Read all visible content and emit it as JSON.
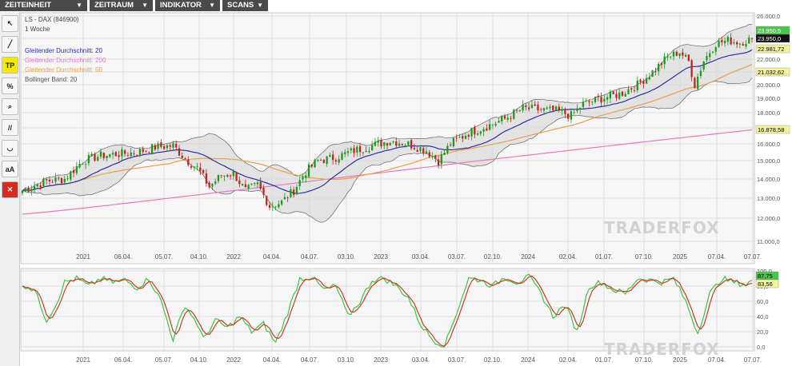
{
  "menu": {
    "items": [
      {
        "label": "ZEITEINHEIT",
        "arrow": "▼"
      },
      {
        "label": "ZEITRAUM",
        "arrow": "▼"
      },
      {
        "label": "INDIKATOR",
        "arrow": "▼"
      },
      {
        "label": "SCANS",
        "arrow": "▼"
      }
    ]
  },
  "toolbar": {
    "tools": [
      {
        "name": "cursor-tool-icon",
        "glyph": "↖"
      },
      {
        "name": "line-tool-icon",
        "glyph": "╱"
      },
      {
        "name": "tp-tool-button",
        "glyph": "TP"
      },
      {
        "name": "percent-tool-icon",
        "glyph": "%"
      },
      {
        "name": "zoom-tool-icon",
        "glyph": "⌕"
      },
      {
        "name": "parallel-lines-tool-icon",
        "glyph": "//"
      },
      {
        "name": "arc-tool-icon",
        "glyph": "◡"
      },
      {
        "name": "text-size-tool-button",
        "glyph": "aA"
      },
      {
        "name": "delete-tool-icon",
        "glyph": "✕"
      }
    ]
  },
  "watermark": "TRADERFOX",
  "chart_data": [
    {
      "type": "line",
      "title": "LS - DAX (846900)",
      "subtitle": "1 Woche",
      "legend": [
        {
          "name": "Gleitender Durchschnitt: 20",
          "color": "#2c2fa0"
        },
        {
          "name": "Gleitender Durchschnitt: 200",
          "color": "#e27bc0"
        },
        {
          "name": "Gleitender Durchschnitt: 50",
          "color": "#e8a14b"
        },
        {
          "name": "Bollinger Band: 20",
          "color": "#555555"
        }
      ],
      "legend_placement": "top-left",
      "x_ticks": [
        "2021",
        "06.04.",
        "05.07.",
        "04.10.",
        "2022",
        "04.04.",
        "04.07.",
        "03.10.",
        "2023",
        "03.04.",
        "03.07.",
        "02.10.",
        "2024",
        "02.04.",
        "01.07.",
        "07.10.",
        "2025",
        "07.04.",
        "07.07."
      ],
      "y_ticks": [
        "26.000,0",
        "24.000,0",
        "22.000,0",
        "21.000,0",
        "20.000,0",
        "19.000,0",
        "18.000,0",
        "17.000,0",
        "16.000,0",
        "15.000,0",
        "14.000,0",
        "13.000,0",
        "12.000,0",
        "11.000,0"
      ],
      "ylim": [
        10800,
        26000
      ],
      "grid": true,
      "price_anchors": [
        {
          "x": 0,
          "y": 13400
        },
        {
          "x": 8,
          "y": 13900
        },
        {
          "x": 14,
          "y": 14000
        },
        {
          "x": 20,
          "y": 15000
        },
        {
          "x": 26,
          "y": 15300
        },
        {
          "x": 32,
          "y": 15400
        },
        {
          "x": 38,
          "y": 15500
        },
        {
          "x": 44,
          "y": 15800
        },
        {
          "x": 50,
          "y": 15900
        },
        {
          "x": 54,
          "y": 15100
        },
        {
          "x": 58,
          "y": 14600
        },
        {
          "x": 62,
          "y": 13600
        },
        {
          "x": 66,
          "y": 14200
        },
        {
          "x": 70,
          "y": 14300
        },
        {
          "x": 74,
          "y": 13400
        },
        {
          "x": 78,
          "y": 13700
        },
        {
          "x": 82,
          "y": 12600
        },
        {
          "x": 86,
          "y": 12800
        },
        {
          "x": 90,
          "y": 13400
        },
        {
          "x": 94,
          "y": 14400
        },
        {
          "x": 98,
          "y": 15000
        },
        {
          "x": 104,
          "y": 15200
        },
        {
          "x": 110,
          "y": 15600
        },
        {
          "x": 116,
          "y": 15900
        },
        {
          "x": 122,
          "y": 16200
        },
        {
          "x": 128,
          "y": 16000
        },
        {
          "x": 134,
          "y": 15600
        },
        {
          "x": 138,
          "y": 15000
        },
        {
          "x": 142,
          "y": 16000
        },
        {
          "x": 148,
          "y": 16700
        },
        {
          "x": 154,
          "y": 17100
        },
        {
          "x": 160,
          "y": 17600
        },
        {
          "x": 166,
          "y": 18300
        },
        {
          "x": 172,
          "y": 18200
        },
        {
          "x": 178,
          "y": 18100
        },
        {
          "x": 182,
          "y": 17800
        },
        {
          "x": 186,
          "y": 18600
        },
        {
          "x": 192,
          "y": 19000
        },
        {
          "x": 198,
          "y": 19300
        },
        {
          "x": 204,
          "y": 20000
        },
        {
          "x": 210,
          "y": 21200
        },
        {
          "x": 214,
          "y": 22200
        },
        {
          "x": 218,
          "y": 22700
        },
        {
          "x": 221,
          "y": 21800
        },
        {
          "x": 223,
          "y": 20000
        },
        {
          "x": 226,
          "y": 21900
        },
        {
          "x": 230,
          "y": 23500
        },
        {
          "x": 234,
          "y": 23800
        },
        {
          "x": 238,
          "y": 23600
        },
        {
          "x": 242,
          "y": 23950
        }
      ],
      "price_labels": [
        {
          "text": "23.950,5",
          "value": 23950.5,
          "bg": "#4cc44c",
          "fg": "#ffffff"
        },
        {
          "text": "23.950,0",
          "value": 23950,
          "bg": "#111111",
          "fg": "#ffffff"
        },
        {
          "text": "22.981,72",
          "value": 22981.72,
          "bg": "#f6f3a0",
          "fg": "#000000"
        },
        {
          "text": "21.032,62",
          "value": 21032.62,
          "bg": "#f6f3a0",
          "fg": "#000000"
        },
        {
          "text": "16.878,58",
          "value": 16878.58,
          "bg": "#f6f3a0",
          "fg": "#000000"
        }
      ],
      "colors": {
        "up": "#1a9a1a",
        "down": "#c0201e",
        "band_fill": "#d4d4d4"
      }
    },
    {
      "type": "line",
      "indicator": "stochastic",
      "x_ticks": [
        "2021",
        "06.04.",
        "05.07.",
        "04.10.",
        "2022",
        "04.04.",
        "04.07.",
        "03.10.",
        "2023",
        "03.04.",
        "03.07.",
        "02.10.",
        "2024",
        "02.04.",
        "01.07.",
        "07.10.",
        "2025",
        "07.04.",
        "07.07."
      ],
      "y_ticks": [
        "100,0",
        "80,0",
        "60,0",
        "40,0",
        "20,0",
        "0,0"
      ],
      "ylim": [
        0,
        100
      ],
      "grid": true,
      "osc_anchors": [
        {
          "x": 0,
          "y": 82
        },
        {
          "x": 4,
          "y": 75
        },
        {
          "x": 8,
          "y": 35
        },
        {
          "x": 11,
          "y": 55
        },
        {
          "x": 14,
          "y": 85
        },
        {
          "x": 18,
          "y": 90
        },
        {
          "x": 22,
          "y": 80
        },
        {
          "x": 26,
          "y": 90
        },
        {
          "x": 30,
          "y": 85
        },
        {
          "x": 34,
          "y": 88
        },
        {
          "x": 38,
          "y": 78
        },
        {
          "x": 42,
          "y": 90
        },
        {
          "x": 46,
          "y": 60
        },
        {
          "x": 50,
          "y": 10
        },
        {
          "x": 54,
          "y": 55
        },
        {
          "x": 58,
          "y": 30
        },
        {
          "x": 60,
          "y": 10
        },
        {
          "x": 64,
          "y": 35
        },
        {
          "x": 68,
          "y": 25
        },
        {
          "x": 72,
          "y": 40
        },
        {
          "x": 76,
          "y": 20
        },
        {
          "x": 80,
          "y": 30
        },
        {
          "x": 84,
          "y": 5
        },
        {
          "x": 88,
          "y": 45
        },
        {
          "x": 92,
          "y": 90
        },
        {
          "x": 96,
          "y": 92
        },
        {
          "x": 100,
          "y": 75
        },
        {
          "x": 104,
          "y": 80
        },
        {
          "x": 108,
          "y": 40
        },
        {
          "x": 112,
          "y": 60
        },
        {
          "x": 116,
          "y": 88
        },
        {
          "x": 120,
          "y": 90
        },
        {
          "x": 124,
          "y": 80
        },
        {
          "x": 128,
          "y": 65
        },
        {
          "x": 132,
          "y": 30
        },
        {
          "x": 136,
          "y": 10
        },
        {
          "x": 140,
          "y": 0
        },
        {
          "x": 144,
          "y": 45
        },
        {
          "x": 148,
          "y": 90
        },
        {
          "x": 152,
          "y": 88
        },
        {
          "x": 156,
          "y": 80
        },
        {
          "x": 160,
          "y": 92
        },
        {
          "x": 164,
          "y": 85
        },
        {
          "x": 168,
          "y": 92
        },
        {
          "x": 172,
          "y": 70
        },
        {
          "x": 176,
          "y": 40
        },
        {
          "x": 180,
          "y": 55
        },
        {
          "x": 184,
          "y": 20
        },
        {
          "x": 188,
          "y": 80
        },
        {
          "x": 192,
          "y": 85
        },
        {
          "x": 196,
          "y": 75
        },
        {
          "x": 200,
          "y": 70
        },
        {
          "x": 204,
          "y": 90
        },
        {
          "x": 208,
          "y": 88
        },
        {
          "x": 212,
          "y": 85
        },
        {
          "x": 216,
          "y": 90
        },
        {
          "x": 220,
          "y": 60
        },
        {
          "x": 224,
          "y": 18
        },
        {
          "x": 228,
          "y": 70
        },
        {
          "x": 232,
          "y": 90
        },
        {
          "x": 236,
          "y": 85
        },
        {
          "x": 240,
          "y": 82
        },
        {
          "x": 242,
          "y": 87
        }
      ],
      "value_labels": [
        {
          "text": "87,75",
          "value": 87.75,
          "bg": "#4cc44c",
          "fg": "#000000"
        },
        {
          "text": "83,56",
          "value": 83.56,
          "bg": "#f6f3a0",
          "fg": "#000000"
        }
      ],
      "colors": {
        "k": "#3ec43e",
        "d": "#c83a2a"
      }
    }
  ]
}
